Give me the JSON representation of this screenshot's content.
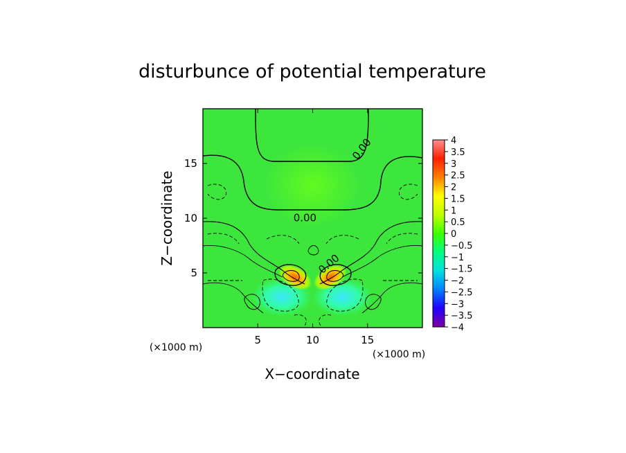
{
  "chart_data": {
    "type": "heatmap",
    "title": "disturbunce of potential temperature",
    "xlabel": "X−coordinate",
    "ylabel": "Z−coordinate",
    "x_unit": "(×1000 m)",
    "z_unit": "(×1000 m)",
    "xlim": [
      0,
      20
    ],
    "ylim": [
      0,
      20
    ],
    "x_ticks": [
      {
        "value": 5,
        "label": "5"
      },
      {
        "value": 10,
        "label": "10"
      },
      {
        "value": 15,
        "label": "15"
      }
    ],
    "y_ticks": [
      {
        "value": 5,
        "label": "5"
      },
      {
        "value": 10,
        "label": "10"
      },
      {
        "value": 15,
        "label": "15"
      }
    ],
    "contour_labels": [
      {
        "text": "0.00",
        "x": 14.5,
        "z": 16.3,
        "angle": -52
      },
      {
        "text": "0.00",
        "x": 9.3,
        "z": 10.0,
        "angle": 0
      },
      {
        "text": "0.00",
        "x": 11.5,
        "z": 5.8,
        "angle": -40
      }
    ],
    "colorbar": {
      "min": -4,
      "max": 4,
      "ticks": [
        {
          "value": 4,
          "label": "4"
        },
        {
          "value": 3.5,
          "label": "3.5"
        },
        {
          "value": 3,
          "label": "3"
        },
        {
          "value": 2.5,
          "label": "2.5"
        },
        {
          "value": 2,
          "label": "2"
        },
        {
          "value": 1.5,
          "label": "1.5"
        },
        {
          "value": 1,
          "label": "1"
        },
        {
          "value": 0.5,
          "label": "0.5"
        },
        {
          "value": 0,
          "label": "0"
        },
        {
          "value": -0.5,
          "label": "−0.5"
        },
        {
          "value": -1,
          "label": "−1"
        },
        {
          "value": -1.5,
          "label": "−1.5"
        },
        {
          "value": -2,
          "label": "−2"
        },
        {
          "value": -2.5,
          "label": "−2.5"
        },
        {
          "value": -3,
          "label": "−3"
        },
        {
          "value": -3.5,
          "label": "−3.5"
        },
        {
          "value": -4,
          "label": "−4"
        }
      ],
      "colors": [
        "#7f00a0",
        "#2000ff",
        "#0080ff",
        "#00e0e0",
        "#00ff80",
        "#40ff00",
        "#c0ff00",
        "#ffff00",
        "#ff8000",
        "#ff2000",
        "#ff9090"
      ]
    },
    "field_background": "#3ce63c",
    "features": [
      {
        "name": "cold-anomaly-left",
        "x": 7.2,
        "z": 2.8,
        "value": -1.2
      },
      {
        "name": "cold-anomaly-right",
        "x": 12.7,
        "z": 2.8,
        "value": -1.2
      },
      {
        "name": "warm-core-left",
        "x": 8.4,
        "z": 4.6,
        "value": 2.6
      },
      {
        "name": "warm-core-right",
        "x": 11.6,
        "z": 4.6,
        "value": 2.6
      },
      {
        "name": "upper-warm-region",
        "x": 10.0,
        "z": 13.0,
        "value": 0.6
      }
    ]
  }
}
